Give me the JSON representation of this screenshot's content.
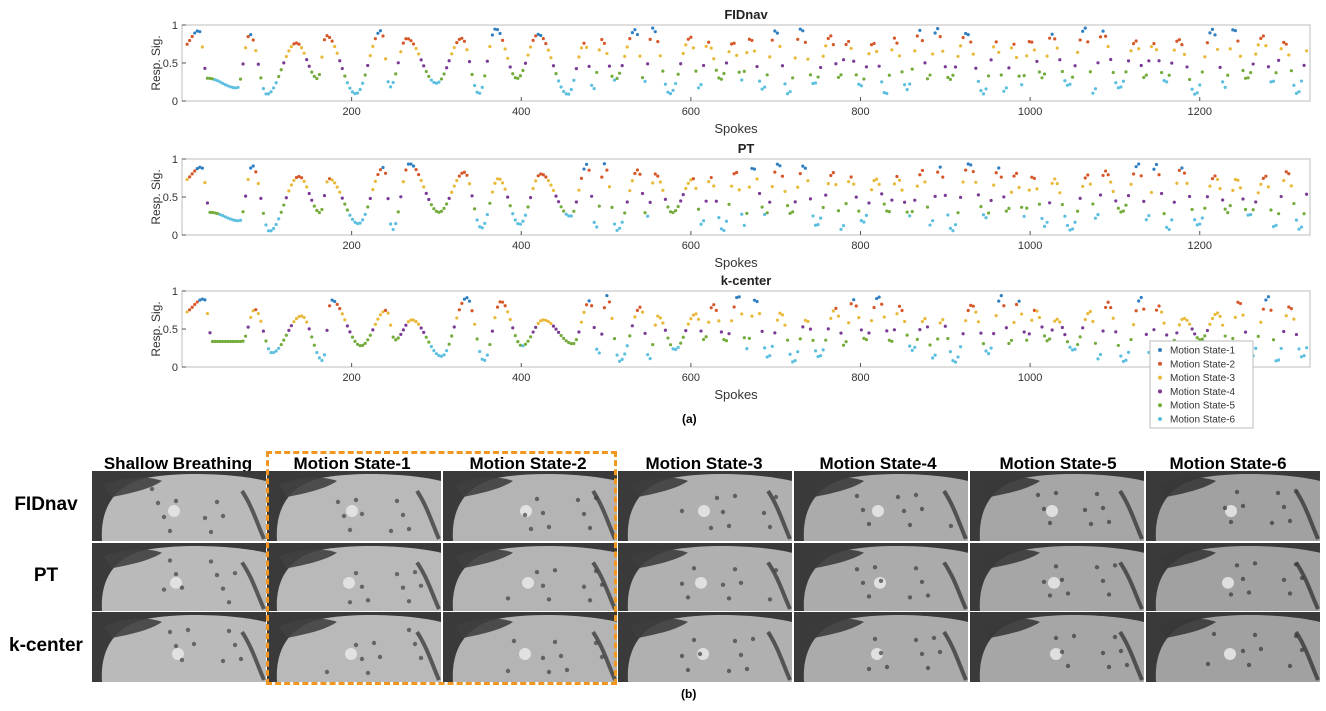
{
  "figure": {
    "panel_a_label": "(a)",
    "panel_b_label": "(b)"
  },
  "legend": [
    {
      "label": "Motion State-1",
      "color": "#2f7fc1"
    },
    {
      "label": "Motion State-2",
      "color": "#d6582a"
    },
    {
      "label": "Motion State-3",
      "color": "#e8b93a"
    },
    {
      "label": "Motion State-4",
      "color": "#7b3a96"
    },
    {
      "label": "Motion State-5",
      "color": "#74ac3c"
    },
    {
      "label": "Motion State-6",
      "color": "#5dbfe0"
    }
  ],
  "chart_data": [
    {
      "type": "scatter",
      "title": "FIDnav",
      "xlabel": "Spokes",
      "ylabel": "Resp. Sig.",
      "xlim": [
        0,
        1330
      ],
      "ylim": [
        0,
        1
      ],
      "xticks": [
        200,
        400,
        600,
        800,
        1000,
        1200
      ],
      "yticks": [
        0,
        0.5,
        1
      ],
      "peaks_x": [
        20,
        80,
        135,
        170,
        235,
        265,
        330,
        370,
        420,
        475,
        495,
        535,
        555,
        600,
        620,
        650,
        670,
        700,
        730,
        765,
        785,
        815,
        840,
        870,
        890,
        925,
        960,
        980,
        1000,
        1025,
        1065,
        1085,
        1125,
        1145,
        1175,
        1215,
        1240,
        1275,
        1300,
        1330
      ],
      "troughs_x": [
        30,
        65,
        100,
        160,
        205,
        245,
        300,
        350,
        395,
        455,
        485,
        510,
        545,
        575,
        610,
        635,
        660,
        685,
        715,
        745,
        775,
        800,
        830,
        855,
        880,
        905,
        945,
        970,
        990,
        1015,
        1045,
        1075,
        1105,
        1135,
        1160,
        1195,
        1230,
        1255,
        1285,
        1315
      ],
      "series": [
        {
          "name": "Motion State-1"
        },
        {
          "name": "Motion State-2"
        },
        {
          "name": "Motion State-3"
        },
        {
          "name": "Motion State-4"
        },
        {
          "name": "Motion State-5"
        },
        {
          "name": "Motion State-6"
        }
      ]
    },
    {
      "type": "scatter",
      "title": "PT",
      "xlabel": "Spokes",
      "ylabel": "Resp. Sig.",
      "xlim": [
        0,
        1330
      ],
      "ylim": [
        0,
        1
      ],
      "xticks": [
        200,
        400,
        600,
        800,
        1000,
        1200
      ],
      "yticks": [
        0,
        0.5,
        1
      ]
    },
    {
      "type": "scatter",
      "title": "k-center",
      "xlabel": "Spokes",
      "ylabel": "Resp. Sig.",
      "xlim": [
        0,
        1330
      ],
      "ylim": [
        0,
        1
      ],
      "xticks": [
        200,
        400,
        600,
        800,
        1000,
        1200
      ],
      "yticks": [
        0,
        0.5,
        1
      ]
    }
  ],
  "image_grid": {
    "columns": [
      "Shallow Breathing",
      "Motion State-1",
      "Motion State-2",
      "Motion State-3",
      "Motion State-4",
      "Motion State-5",
      "Motion State-6"
    ],
    "rows": [
      "FIDnav",
      "PT",
      "k-center"
    ],
    "highlighted_columns": [
      "Motion State-1",
      "Motion State-2"
    ],
    "highlight_color": "#f29622"
  }
}
